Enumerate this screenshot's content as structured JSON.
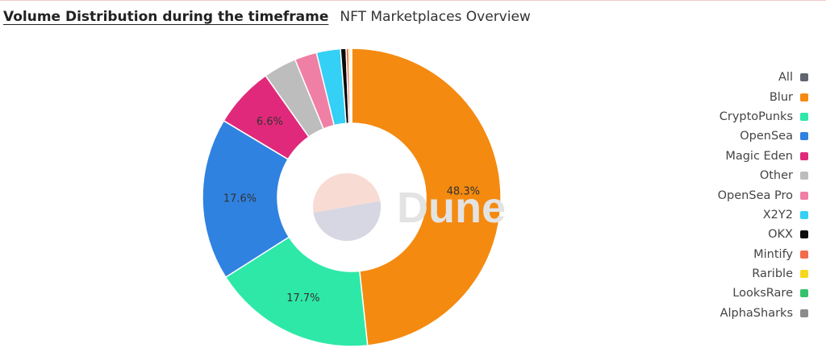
{
  "header": {
    "title": "Volume Distribution during the timeframe",
    "subtitle": "NFT Marketplaces Overview"
  },
  "watermark": {
    "text": "Dune"
  },
  "legend": {
    "items": [
      {
        "label": "All",
        "color": "#5f6670"
      },
      {
        "label": "Blur",
        "color": "#f48a10"
      },
      {
        "label": "CryptoPunks",
        "color": "#2ee8a8"
      },
      {
        "label": "OpenSea",
        "color": "#2f82e0"
      },
      {
        "label": "Magic Eden",
        "color": "#e0297a"
      },
      {
        "label": "Other",
        "color": "#bdbdbd"
      },
      {
        "label": "OpenSea Pro",
        "color": "#f07fa5"
      },
      {
        "label": "X2Y2",
        "color": "#34d0f5"
      },
      {
        "label": "OKX",
        "color": "#0b0b0b"
      },
      {
        "label": "Mintify",
        "color": "#f26b4b"
      },
      {
        "label": "Rarible",
        "color": "#f6d81e"
      },
      {
        "label": "LooksRare",
        "color": "#36c26a"
      },
      {
        "label": "AlphaSharks",
        "color": "#8c8c8c"
      }
    ]
  },
  "chart_data": {
    "type": "pie",
    "variant": "donut",
    "series": [
      {
        "name": "Blur",
        "value": 48.3,
        "color": "#f48a10",
        "label": "48.3%"
      },
      {
        "name": "CryptoPunks",
        "value": 17.7,
        "color": "#2ee8a8",
        "label": "17.7%"
      },
      {
        "name": "OpenSea",
        "value": 17.6,
        "color": "#2f82e0",
        "label": "17.6%"
      },
      {
        "name": "Magic Eden",
        "value": 6.6,
        "color": "#e0297a",
        "label": "6.6%"
      },
      {
        "name": "Other",
        "value": 3.6,
        "color": "#bdbdbd",
        "label": ""
      },
      {
        "name": "OpenSea Pro",
        "value": 2.4,
        "color": "#f07fa5",
        "label": ""
      },
      {
        "name": "X2Y2",
        "value": 2.6,
        "color": "#34d0f5",
        "label": ""
      },
      {
        "name": "OKX",
        "value": 0.6,
        "color": "#0b0b0b",
        "label": ""
      },
      {
        "name": "Mintify",
        "value": 0.3,
        "color": "#f26b4b",
        "label": ""
      },
      {
        "name": "Rarible",
        "value": 0.2,
        "color": "#f6d81e",
        "label": ""
      },
      {
        "name": "LooksRare",
        "value": 0.05,
        "color": "#36c26a",
        "label": ""
      },
      {
        "name": "AlphaSharks",
        "value": 0.05,
        "color": "#8c8c8c",
        "label": ""
      }
    ],
    "legend_position": "right"
  }
}
